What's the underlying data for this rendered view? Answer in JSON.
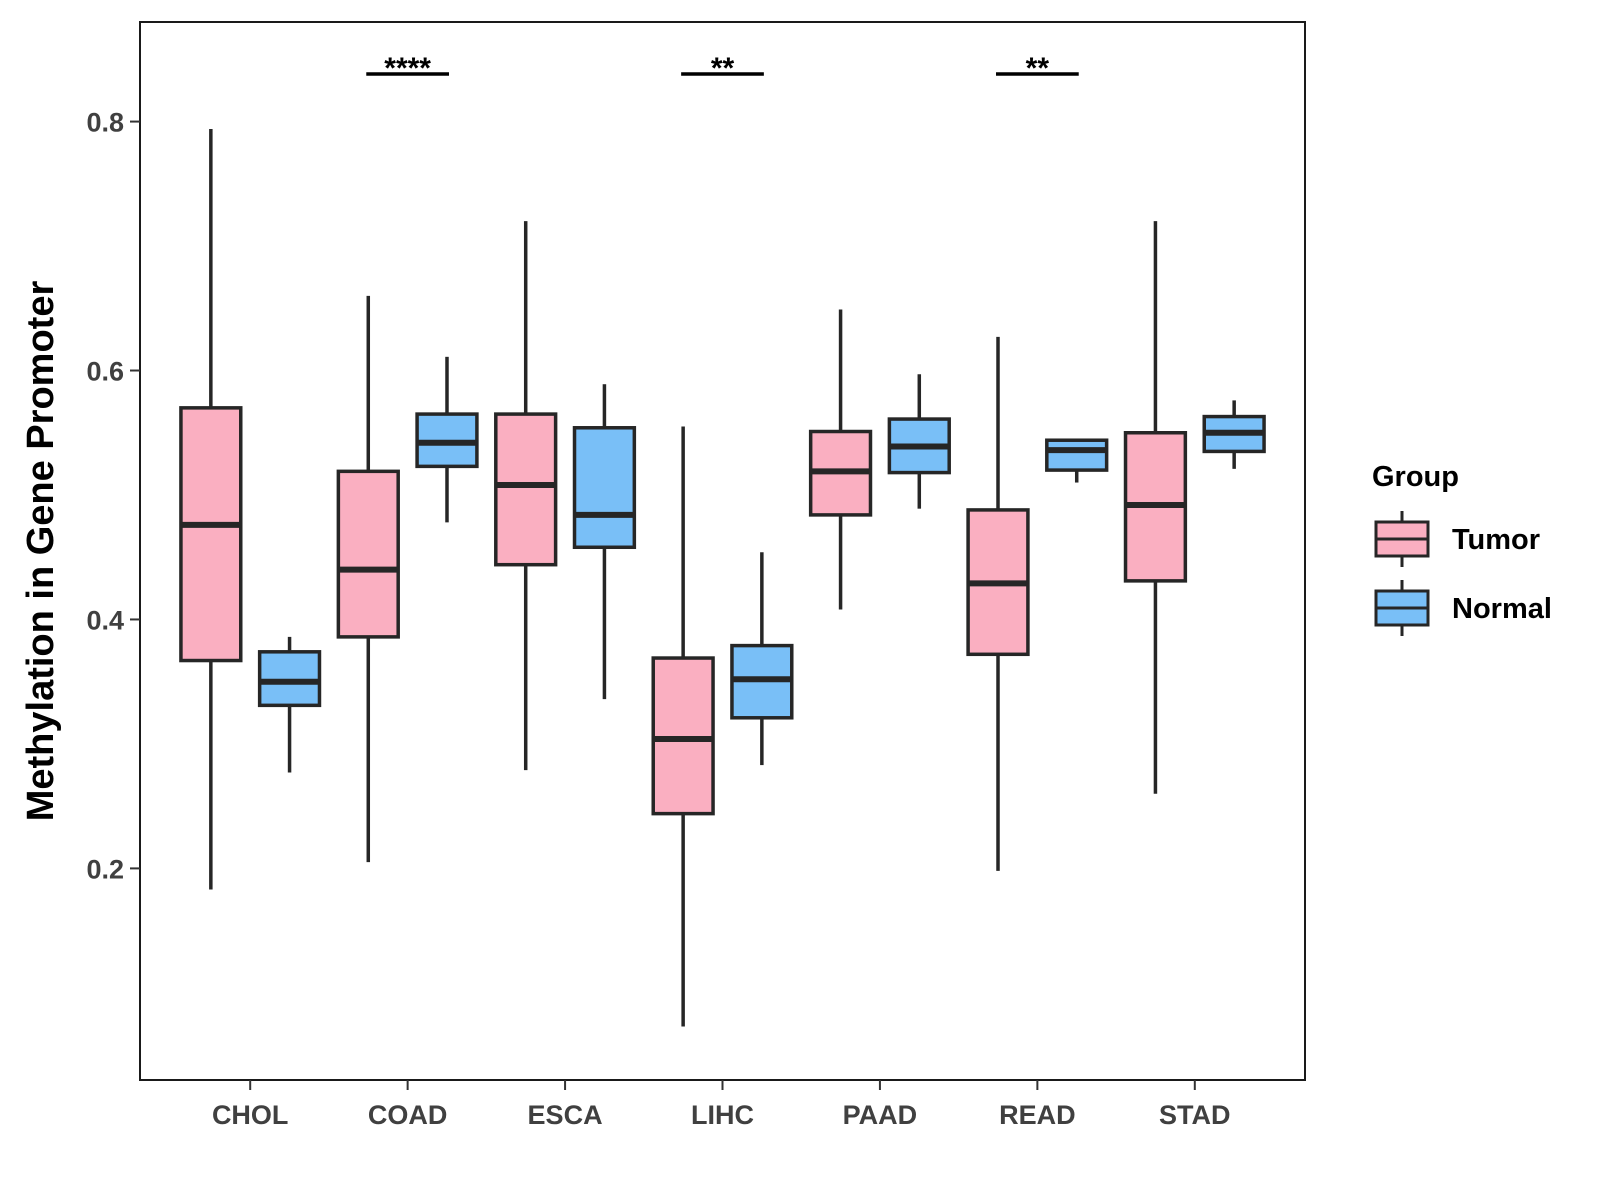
{
  "chart_data": {
    "type": "boxplot",
    "title": "",
    "xlabel": "",
    "ylabel": "Methylation in Gene Promoter",
    "ylim": [
      0.03,
      0.88
    ],
    "yticks": [
      0.2,
      0.4,
      0.6,
      0.8
    ],
    "ytick_labels": [
      "0.2",
      "0.4",
      "0.6",
      "0.8"
    ],
    "categories": [
      "CHOL",
      "COAD",
      "ESCA",
      "LIHC",
      "PAAD",
      "READ",
      "STAD"
    ],
    "legend": {
      "title": "Group",
      "position": "right",
      "entries": [
        {
          "name": "Tumor",
          "color": "#FAAFC1"
        },
        {
          "name": "Normal",
          "color": "#79BFF7"
        }
      ]
    },
    "series": [
      {
        "name": "Tumor",
        "color": "#FAAFC1",
        "boxes": [
          {
            "category": "CHOL",
            "min": 0.183,
            "q1": 0.367,
            "median": 0.476,
            "q3": 0.57,
            "max": 0.794
          },
          {
            "category": "COAD",
            "min": 0.205,
            "q1": 0.386,
            "median": 0.44,
            "q3": 0.519,
            "max": 0.66
          },
          {
            "category": "ESCA",
            "min": 0.279,
            "q1": 0.444,
            "median": 0.508,
            "q3": 0.565,
            "max": 0.72
          },
          {
            "category": "LIHC",
            "min": 0.073,
            "q1": 0.244,
            "median": 0.304,
            "q3": 0.369,
            "max": 0.555
          },
          {
            "category": "PAAD",
            "min": 0.408,
            "q1": 0.484,
            "median": 0.519,
            "q3": 0.551,
            "max": 0.649
          },
          {
            "category": "READ",
            "min": 0.198,
            "q1": 0.372,
            "median": 0.429,
            "q3": 0.488,
            "max": 0.627
          },
          {
            "category": "STAD",
            "min": 0.26,
            "q1": 0.431,
            "median": 0.492,
            "q3": 0.55,
            "max": 0.72
          }
        ]
      },
      {
        "name": "Normal",
        "color": "#79BFF7",
        "boxes": [
          {
            "category": "CHOL",
            "min": 0.277,
            "q1": 0.331,
            "median": 0.35,
            "q3": 0.374,
            "max": 0.386
          },
          {
            "category": "COAD",
            "min": 0.478,
            "q1": 0.523,
            "median": 0.542,
            "q3": 0.565,
            "max": 0.611
          },
          {
            "category": "ESCA",
            "min": 0.336,
            "q1": 0.458,
            "median": 0.484,
            "q3": 0.554,
            "max": 0.589
          },
          {
            "category": "LIHC",
            "min": 0.283,
            "q1": 0.321,
            "median": 0.352,
            "q3": 0.379,
            "max": 0.454
          },
          {
            "category": "PAAD",
            "min": 0.489,
            "q1": 0.518,
            "median": 0.539,
            "q3": 0.561,
            "max": 0.597
          },
          {
            "category": "READ",
            "min": 0.51,
            "q1": 0.52,
            "median": 0.536,
            "q3": 0.544,
            "max": 0.544
          },
          {
            "category": "STAD",
            "min": 0.521,
            "q1": 0.535,
            "median": 0.55,
            "q3": 0.563,
            "max": 0.576
          }
        ]
      }
    ],
    "annotations": [
      {
        "category": "COAD",
        "label": "****"
      },
      {
        "category": "LIHC",
        "label": "**"
      },
      {
        "category": "READ",
        "label": "**"
      }
    ]
  }
}
